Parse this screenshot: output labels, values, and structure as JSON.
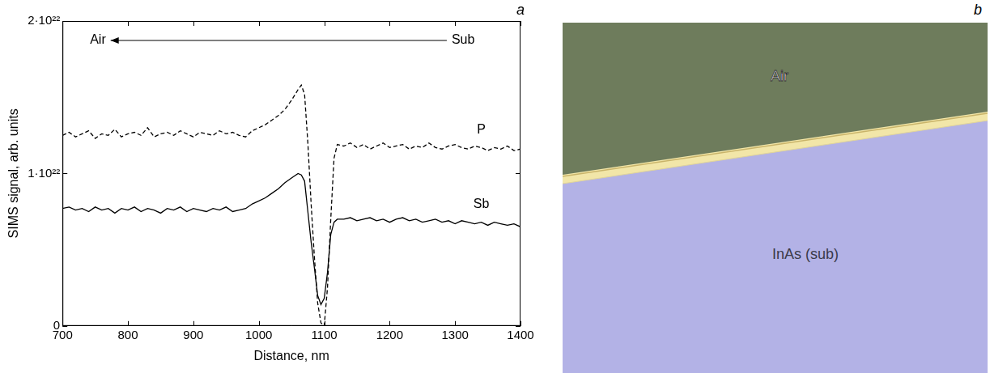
{
  "chart_data": {
    "type": "line",
    "panel_label": "a",
    "x_label": "Distance, nm",
    "y_label": "SIMS signal, arb. units",
    "annotations": {
      "arrow_from": "Sub",
      "arrow_to": "Air"
    },
    "xlim": [
      700,
      1400
    ],
    "xticks": [
      700,
      800,
      900,
      1000,
      1100,
      1200,
      1300,
      1400
    ],
    "ylim": [
      0,
      2e+22
    ],
    "yticks": [
      0,
      {
        "value": 1e+22,
        "label": "1·10²²"
      },
      {
        "value": 2e+22,
        "label": "2·10²²"
      }
    ],
    "grid": false,
    "x": [
      700,
      710,
      720,
      730,
      740,
      750,
      760,
      770,
      780,
      790,
      800,
      810,
      820,
      830,
      840,
      850,
      860,
      870,
      880,
      890,
      900,
      910,
      920,
      930,
      940,
      950,
      960,
      970,
      980,
      990,
      1000,
      1010,
      1020,
      1030,
      1040,
      1050,
      1060,
      1065,
      1070,
      1075,
      1080,
      1085,
      1090,
      1095,
      1100,
      1105,
      1110,
      1115,
      1120,
      1130,
      1140,
      1150,
      1160,
      1170,
      1180,
      1190,
      1200,
      1210,
      1220,
      1230,
      1240,
      1250,
      1260,
      1270,
      1280,
      1290,
      1300,
      1310,
      1320,
      1330,
      1340,
      1350,
      1360,
      1370,
      1380,
      1390,
      1400
    ],
    "series": [
      {
        "name": "P",
        "color": "#000000",
        "line_style": "dashed",
        "marker": "none",
        "values": [
          1.25e+22,
          1.27e+22,
          1.24e+22,
          1.26e+22,
          1.28e+22,
          1.23e+22,
          1.26e+22,
          1.25e+22,
          1.29e+22,
          1.24e+22,
          1.26e+22,
          1.27e+22,
          1.25e+22,
          1.3e+22,
          1.24e+22,
          1.26e+22,
          1.27e+22,
          1.25e+22,
          1.28e+22,
          1.26e+22,
          1.24e+22,
          1.27e+22,
          1.26e+22,
          1.25e+22,
          1.28e+22,
          1.26e+22,
          1.27e+22,
          1.25e+22,
          1.24e+22,
          1.28e+22,
          1.3e+22,
          1.32e+22,
          1.35e+22,
          1.38e+22,
          1.42e+22,
          1.48e+22,
          1.55e+22,
          1.58e+22,
          1.52e+22,
          1.2e+22,
          8e+21,
          4.5e+21,
          1.5e+21,
          2e+20,
          0,
          2.5e+21,
          7e+21,
          1.1e+22,
          1.19e+22,
          1.18e+22,
          1.2e+22,
          1.17e+22,
          1.19e+22,
          1.16e+22,
          1.18e+22,
          1.2e+22,
          1.17e+22,
          1.18e+22,
          1.19e+22,
          1.16e+22,
          1.18e+22,
          1.17e+22,
          1.2e+22,
          1.17e+22,
          1.16e+22,
          1.18e+22,
          1.19e+22,
          1.17e+22,
          1.16e+22,
          1.18e+22,
          1.17e+22,
          1.15e+22,
          1.17e+22,
          1.16e+22,
          1.18e+22,
          1.15e+22,
          1.16e+22
        ]
      },
      {
        "name": "Sb",
        "color": "#000000",
        "line_style": "solid",
        "marker": "none",
        "values": [
          7.7e+21,
          7.8e+21,
          7.6e+21,
          7.7e+21,
          7.5e+21,
          7.8e+21,
          7.6e+21,
          7.7e+21,
          7.4e+21,
          7.7e+21,
          7.6e+21,
          7.8e+21,
          7.5e+21,
          7.7e+21,
          7.6e+21,
          7.4e+21,
          7.7e+21,
          7.6e+21,
          7.8e+21,
          7.5e+21,
          7.7e+21,
          7.6e+21,
          7.5e+21,
          7.7e+21,
          7.6e+21,
          7.8e+21,
          7.5e+21,
          7.6e+21,
          7.7e+21,
          8e+21,
          8.2e+21,
          8.4e+21,
          8.7e+21,
          9e+21,
          9.4e+21,
          9.7e+21,
          1e+22,
          9.9e+21,
          9.5e+21,
          7.5e+21,
          5.5e+21,
          3.8e+21,
          2e+21,
          1.4e+21,
          1.8e+21,
          3.5e+21,
          6e+21,
          6.8e+21,
          7e+21,
          7e+21,
          7.1e+21,
          6.9e+21,
          7e+21,
          7.1e+21,
          6.9e+21,
          7e+21,
          6.8e+21,
          7e+21,
          7.1e+21,
          6.9e+21,
          7e+21,
          6.8e+21,
          6.9e+21,
          7e+21,
          6.8e+21,
          6.9e+21,
          6.7e+21,
          6.9e+21,
          6.8e+21,
          6.7e+21,
          6.8e+21,
          6.6e+21,
          6.8e+21,
          6.7e+21,
          6.6e+21,
          6.7e+21,
          6.5e+21
        ]
      }
    ]
  },
  "image": {
    "panel_label": "b",
    "regions": {
      "top": "Air",
      "bottom": "InAs (sub)"
    }
  }
}
